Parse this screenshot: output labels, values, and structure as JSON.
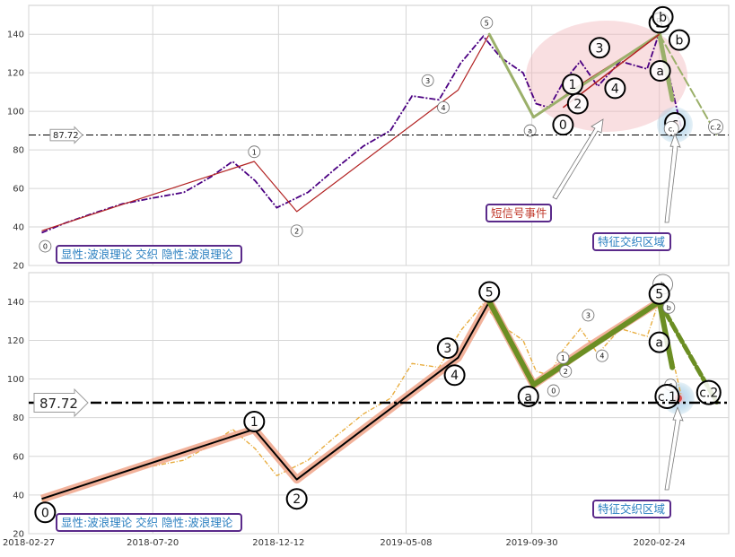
{
  "chart_data": [
    {
      "type": "line",
      "panel": "top",
      "ylim": [
        20,
        155
      ],
      "yticks": [
        20,
        40,
        60,
        80,
        100,
        120,
        140
      ],
      "grid": true,
      "reference_line": {
        "value": 87.72,
        "label": "87.72"
      },
      "legend_box": "显性:波浪理论 交织 隐性:波浪理论",
      "annotations": {
        "short_signal": "短信号事件",
        "feature_zone": "特征交织区域"
      },
      "series": [
        {
          "name": "",
          "style": "price",
          "color": "#4b0082",
          "x": [
            "2018-03-14",
            "2018-04-10",
            "2018-05-12",
            "2018-06-15",
            "2018-07-20",
            "2018-08-25",
            "2018-09-25",
            "2018-10-20",
            "2018-11-15",
            "2018-12-10",
            "2019-01-15",
            "2019-02-15",
            "2019-03-20",
            "2019-04-20",
            "2019-05-15",
            "2019-06-15",
            "2019-07-10",
            "2019-08-05",
            "2019-08-25",
            "2019-09-20",
            "2019-10-05",
            "2019-10-20",
            "2019-11-05",
            "2019-11-25",
            "2019-12-15",
            "2020-01-10",
            "2020-02-10",
            "2020-02-24",
            "2020-03-05",
            "2020-03-20"
          ],
          "y": [
            37,
            42,
            47,
            52,
            55,
            58,
            66,
            74,
            64,
            50,
            58,
            70,
            82,
            90,
            108,
            106,
            125,
            139,
            128,
            120,
            104,
            102,
            115,
            126,
            113,
            126,
            122,
            141,
            121,
            92
          ]
        },
        {
          "name": "",
          "style": "wave",
          "color": "#b22222",
          "x": [
            "2018-03-14",
            "2018-11-14",
            "2019-01-02",
            "2019-07-07",
            "2019-08-12",
            "2019-10-02",
            "2019-12-02",
            "2020-02-24"
          ],
          "y": [
            38,
            74,
            48,
            111,
            140,
            97,
            116,
            140
          ]
        }
      ],
      "wave_labels": [
        {
          "text": "0",
          "x": "2018-03-18",
          "y": 30
        },
        {
          "text": "1",
          "x": "2018-11-14",
          "y": 79
        },
        {
          "text": "2",
          "x": "2019-01-02",
          "y": 38
        },
        {
          "text": "3",
          "x": "2019-06-02",
          "y": 116
        },
        {
          "text": "4",
          "x": "2019-06-20",
          "y": 102
        },
        {
          "text": "5",
          "x": "2019-08-09",
          "y": 146
        },
        {
          "text": "a",
          "x": "2019-09-28",
          "y": 90
        },
        {
          "text": "0",
          "x": "2019-11-05",
          "y": 93
        },
        {
          "text": "1",
          "x": "2019-11-16",
          "y": 114
        },
        {
          "text": "2",
          "x": "2019-11-22",
          "y": 104
        },
        {
          "text": "3",
          "x": "2019-12-17",
          "y": 133
        },
        {
          "text": "4",
          "x": "2020-01-04",
          "y": 112
        },
        {
          "text": "5",
          "x": "2020-02-24",
          "y": 146
        },
        {
          "text": "b",
          "x": "2020-02-28",
          "y": 149
        },
        {
          "text": "b",
          "x": "2020-03-18",
          "y": 137
        },
        {
          "text": "a",
          "x": "2020-02-25",
          "y": 121
        },
        {
          "text": "c",
          "x": "2020-03-13",
          "y": 94
        },
        {
          "text": "c.",
          "x": "2020-03-09",
          "y": 91
        },
        {
          "text": "c.2",
          "x": "2020-04-29",
          "y": 92
        }
      ]
    },
    {
      "type": "line",
      "panel": "bottom",
      "ylim": [
        20,
        155
      ],
      "yticks": [
        20,
        40,
        60,
        80,
        100,
        120,
        140
      ],
      "xticks": [
        "2018-02-27",
        "2018-07-20",
        "2018-12-12",
        "2019-05-08",
        "2019-09-30",
        "2020-02-24"
      ],
      "grid": true,
      "reference_line": {
        "value": 87.72,
        "label": "87.72"
      },
      "legend_box": "显性:波浪理论 交织 隐性:波浪理论",
      "annotations": {
        "feature_zone": "特征交织区域"
      },
      "series": [
        {
          "name": "",
          "style": "price",
          "color": "#e6a42a",
          "x": [
            "2018-03-14",
            "2018-04-10",
            "2018-05-12",
            "2018-06-15",
            "2018-07-20",
            "2018-08-25",
            "2018-09-25",
            "2018-10-20",
            "2018-11-15",
            "2018-12-10",
            "2019-01-15",
            "2019-02-15",
            "2019-03-20",
            "2019-04-20",
            "2019-05-15",
            "2019-06-15",
            "2019-07-10",
            "2019-08-05",
            "2019-08-25",
            "2019-09-20",
            "2019-10-05",
            "2019-10-20",
            "2019-11-05",
            "2019-11-25",
            "2019-12-15",
            "2020-01-10",
            "2020-02-10",
            "2020-02-24",
            "2020-03-05",
            "2020-03-20"
          ],
          "y": [
            37,
            42,
            47,
            52,
            55,
            58,
            66,
            74,
            64,
            50,
            58,
            70,
            82,
            90,
            108,
            106,
            125,
            139,
            128,
            120,
            104,
            102,
            115,
            126,
            113,
            126,
            122,
            141,
            121,
            92
          ]
        },
        {
          "name": "",
          "style": "wave",
          "color": "#000000",
          "x": [
            "2018-03-14",
            "2018-11-14",
            "2019-01-02",
            "2019-07-07",
            "2019-08-12",
            "2019-10-02",
            "2019-12-02",
            "2020-02-24"
          ],
          "y": [
            38,
            74,
            48,
            111,
            140,
            97,
            116,
            140
          ]
        }
      ],
      "wave_labels": [
        {
          "text": "0",
          "x": "2018-03-18",
          "y": 31
        },
        {
          "text": "1",
          "x": "2018-11-14",
          "y": 78
        },
        {
          "text": "2",
          "x": "2019-01-02",
          "y": 38
        },
        {
          "text": "3",
          "x": "2019-06-25",
          "y": 116
        },
        {
          "text": "4",
          "x": "2019-07-03",
          "y": 102
        },
        {
          "text": "5",
          "x": "2019-08-12",
          "y": 145
        },
        {
          "text": "a",
          "x": "2019-09-26",
          "y": 91
        },
        {
          "text": "0",
          "x": "2019-10-25",
          "y": 94
        },
        {
          "text": "1",
          "x": "2019-11-05",
          "y": 111
        },
        {
          "text": "2",
          "x": "2019-11-08",
          "y": 104
        },
        {
          "text": "3",
          "x": "2019-12-04",
          "y": 133
        },
        {
          "text": "4",
          "x": "2019-12-20",
          "y": 112
        },
        {
          "text": "b",
          "x": "2020-02-28",
          "y": 149
        },
        {
          "text": "5",
          "x": "2020-02-24",
          "y": 144
        },
        {
          "text": "b",
          "x": "2020-03-06",
          "y": 137
        },
        {
          "text": "a",
          "x": "2020-02-24",
          "y": 119
        },
        {
          "text": "c",
          "x": "2020-03-08",
          "y": 97
        },
        {
          "text": "c.1",
          "x": "2020-03-04",
          "y": 91
        },
        {
          "text": "c.2",
          "x": "2020-04-21",
          "y": 93
        }
      ]
    }
  ]
}
